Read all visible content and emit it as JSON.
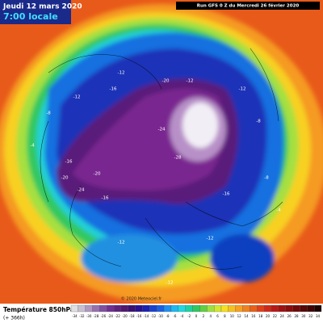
{
  "header": {
    "date": "Jeudi 12 mars 2020",
    "time": "7:00 locale",
    "run": "Run GFS 0 Z du Mercredi 26 février 2020"
  },
  "map": {
    "credit": "© 2020 Meteociel.fr",
    "contour_labels": [
      "-12",
      "-16",
      "-12",
      "-20",
      "-24",
      "-28",
      "-20",
      "-16",
      "-12",
      "-24",
      "-20",
      "-16",
      "-12",
      "-8",
      "-12",
      "-8",
      "-4",
      "-12",
      "-16",
      "-8",
      "-4",
      "-12"
    ]
  },
  "footer": {
    "title": "Température 850hPa",
    "lead": "(+ 366h)",
    "scale": [
      -34,
      -32,
      -30,
      -28,
      -26,
      -24,
      -22,
      -20,
      -18,
      -16,
      -14,
      -12,
      -10,
      -8,
      -6,
      -4,
      -2,
      0,
      2,
      4,
      6,
      8,
      10,
      12,
      14,
      16,
      18,
      20,
      22,
      24,
      26,
      28,
      30,
      32,
      34
    ]
  }
}
